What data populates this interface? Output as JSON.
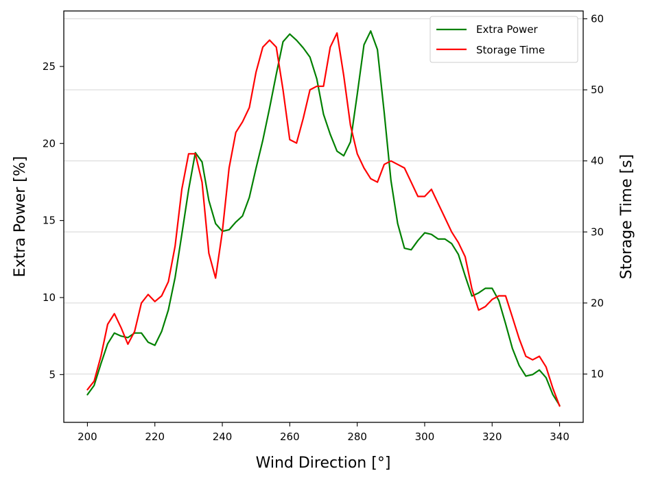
{
  "chart_data": {
    "type": "line",
    "xlabel": "Wind Direction [°]",
    "ylabel": "Extra Power [%]",
    "y2label": "Storage Time [s]",
    "xlim": [
      193,
      347
    ],
    "ylim": [
      1.9,
      28.6
    ],
    "y2lim": [
      3.2,
      61.1
    ],
    "xticks": [
      200,
      220,
      240,
      260,
      280,
      300,
      320,
      340
    ],
    "yticks": [
      5,
      10,
      15,
      20,
      25
    ],
    "y2ticks": [
      10,
      20,
      30,
      40,
      50,
      60
    ],
    "grid": "right-axis horizontal",
    "legend_position": "top-right",
    "series": [
      {
        "name": "Extra Power",
        "axis": "left",
        "color": "#008000",
        "x": [
          200,
          202,
          204,
          206,
          208,
          210,
          212,
          214,
          216,
          218,
          220,
          222,
          224,
          226,
          228,
          230,
          232,
          234,
          236,
          238,
          240,
          242,
          244,
          246,
          248,
          250,
          252,
          254,
          256,
          258,
          260,
          262,
          264,
          266,
          268,
          270,
          272,
          274,
          276,
          278,
          280,
          282,
          284,
          286,
          288,
          290,
          292,
          294,
          296,
          298,
          300,
          302,
          304,
          306,
          308,
          310,
          312,
          314,
          316,
          318,
          320,
          322,
          324,
          326,
          328,
          330,
          332,
          334,
          336,
          338,
          340
        ],
        "values": [
          3.7,
          4.3,
          5.7,
          7.0,
          7.7,
          7.5,
          7.4,
          7.7,
          7.7,
          7.1,
          6.9,
          7.8,
          9.2,
          11.3,
          14.1,
          17.0,
          19.4,
          18.8,
          16.3,
          14.8,
          14.3,
          14.4,
          14.9,
          15.3,
          16.5,
          18.4,
          20.2,
          22.3,
          24.5,
          26.6,
          27.1,
          26.7,
          26.2,
          25.6,
          24.2,
          21.9,
          20.6,
          19.5,
          19.2,
          20.1,
          23.2,
          26.4,
          27.3,
          26.1,
          22.0,
          17.6,
          14.8,
          13.2,
          13.1,
          13.7,
          14.2,
          14.1,
          13.8,
          13.8,
          13.5,
          12.8,
          11.4,
          10.1,
          10.3,
          10.6,
          10.6,
          9.8,
          8.3,
          6.7,
          5.6,
          4.9,
          5.0,
          5.3,
          4.8,
          3.7,
          3.0
        ]
      },
      {
        "name": "Storage Time",
        "axis": "right",
        "color": "#ff0000",
        "x": [
          200,
          202,
          204,
          206,
          208,
          210,
          212,
          214,
          216,
          218,
          220,
          222,
          224,
          226,
          228,
          230,
          232,
          234,
          236,
          238,
          240,
          242,
          244,
          246,
          248,
          250,
          252,
          254,
          256,
          258,
          260,
          262,
          264,
          266,
          268,
          270,
          272,
          274,
          276,
          278,
          280,
          282,
          284,
          286,
          288,
          290,
          292,
          294,
          296,
          298,
          300,
          302,
          304,
          306,
          308,
          310,
          312,
          314,
          316,
          318,
          320,
          322,
          324,
          326,
          328,
          330,
          332,
          334,
          336,
          338,
          340
        ],
        "values": [
          7.8,
          9.0,
          12.5,
          17.0,
          18.5,
          16.5,
          14.2,
          16.0,
          20.0,
          21.2,
          20.2,
          21.0,
          23.0,
          28.0,
          36.0,
          41.0,
          41.0,
          37.0,
          27.0,
          23.5,
          30.0,
          39.0,
          44.0,
          45.5,
          47.5,
          52.5,
          56.0,
          57.0,
          56.0,
          50.0,
          43.0,
          42.5,
          46.0,
          50.0,
          50.5,
          50.5,
          56.0,
          58.0,
          52.0,
          45.0,
          41.0,
          39.0,
          37.5,
          37.0,
          39.5,
          40.0,
          39.5,
          39.0,
          37.0,
          35.0,
          35.0,
          36.0,
          34.0,
          32.0,
          30.0,
          28.5,
          26.5,
          22.0,
          19.0,
          19.5,
          20.5,
          21.0,
          21.0,
          18.0,
          15.0,
          12.5,
          12.0,
          12.5,
          11.0,
          8.0,
          5.5
        ]
      }
    ]
  }
}
